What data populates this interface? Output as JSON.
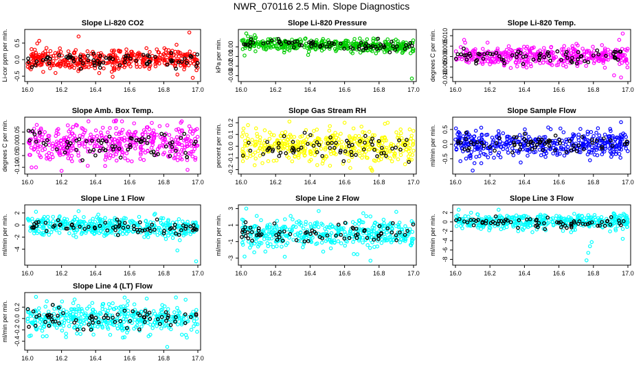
{
  "figure_title": "NWR_070116  2.5 Min. Slope Diagnostics",
  "colors": {
    "red": "#ff0000",
    "green": "#00cc00",
    "magenta": "#ff00ff",
    "yellow": "#ffff00",
    "blue": "#0000ff",
    "cyan": "#00ffff",
    "black": "#000000"
  },
  "chart_data": [
    {
      "type": "scatter",
      "title": "Slope Li-820 CO2",
      "ylabel": "Li-cor ppm per min.",
      "color": "red",
      "xlim": [
        16.0,
        17.0
      ],
      "ylim": [
        -0.6,
        0.85
      ],
      "xticks": [
        "16.0",
        "16.2",
        "16.4",
        "16.6",
        "16.8",
        "17.0"
      ],
      "yticks": [
        {
          "v": -0.5,
          "label": "-0.5"
        },
        {
          "v": 0,
          "label": "0.0"
        },
        {
          "v": 0.5,
          "label": "0.5"
        }
      ],
      "n_points": 420,
      "spread": 0.16,
      "seed": 11,
      "outliers": [
        [
          16.95,
          0.82
        ],
        [
          16.97,
          -0.55
        ],
        [
          16.3,
          0.7
        ],
        [
          16.88,
          -0.45
        ],
        [
          16.5,
          -0.52
        ]
      ]
    },
    {
      "type": "scatter",
      "title": "Slope Li-820 Pressure",
      "ylabel": "kPa per min.",
      "color": "green",
      "xlim": [
        16.0,
        17.0
      ],
      "ylim": [
        -0.034,
        0.016
      ],
      "xticks": [
        "16.0",
        "16.2",
        "16.4",
        "16.6",
        "16.8",
        "17.0"
      ],
      "yticks": [
        {
          "v": -0.03,
          "label": "-0.03"
        },
        {
          "v": -0.02,
          "label": "-0.02"
        },
        {
          "v": -0.01,
          "label": "-0.01"
        },
        {
          "v": 0,
          "label": "0.00"
        }
      ],
      "n_points": 420,
      "spread": 0.003,
      "seed": 23,
      "trend": [
        0.004,
        0.0
      ],
      "outliers": [
        [
          16.03,
          0.014
        ],
        [
          16.02,
          -0.009
        ],
        [
          16.99,
          -0.033
        ],
        [
          16.04,
          0.011
        ],
        [
          16.08,
          0.009
        ]
      ]
    },
    {
      "type": "scatter",
      "title": "Slope Li-820 Temp.",
      "ylabel": "degrees C per min.",
      "color": "magenta",
      "xlim": [
        16.0,
        17.0
      ],
      "ylim": [
        -0.011,
        0.012
      ],
      "xticks": [
        "16.0",
        "16.2",
        "16.4",
        "16.6",
        "16.8",
        "17.0"
      ],
      "yticks": [
        {
          "v": -0.01,
          "label": "-0.010"
        },
        {
          "v": -0.005,
          "label": "-0.005"
        },
        {
          "v": 0,
          "label": "0.000"
        },
        {
          "v": 0.005,
          "label": "0.005"
        },
        {
          "v": 0.01,
          "label": "0.010"
        }
      ],
      "n_points": 420,
      "spread": 0.0022,
      "seed": 37,
      "outliers": [
        [
          16.97,
          0.011
        ],
        [
          16.96,
          -0.01
        ],
        [
          16.92,
          -0.009
        ],
        [
          16.05,
          0.008
        ],
        [
          16.95,
          0.008
        ]
      ]
    },
    {
      "type": "scatter",
      "title": "Slope Amb. Box Temp.",
      "ylabel": "degrees C per min.",
      "color": "magenta",
      "xlim": [
        16.0,
        17.0
      ],
      "ylim": [
        -0.12,
        0.105
      ],
      "xticks": [
        "16.0",
        "16.2",
        "16.4",
        "16.6",
        "16.8",
        "17.0"
      ],
      "yticks": [
        {
          "v": -0.1,
          "label": "-0.10"
        },
        {
          "v": -0.05,
          "label": "-0.05"
        },
        {
          "v": 0,
          "label": "0.00"
        },
        {
          "v": 0.05,
          "label": "0.05"
        }
      ],
      "n_points": 420,
      "spread": 0.04,
      "seed": 41,
      "outliers": [
        [
          16.52,
          0.1
        ],
        [
          16.2,
          -0.115
        ],
        [
          16.05,
          -0.1
        ],
        [
          16.9,
          0.09
        ]
      ]
    },
    {
      "type": "scatter",
      "title": "Slope Gas Stream RH",
      "ylabel": "percent per min.",
      "color": "yellow",
      "xlim": [
        16.0,
        17.0
      ],
      "ylim": [
        -0.22,
        0.23
      ],
      "xticks": [
        "16.0",
        "16.2",
        "16.4",
        "16.6",
        "16.8",
        "17.0"
      ],
      "yticks": [
        {
          "v": -0.2,
          "label": "-0.2"
        },
        {
          "v": -0.1,
          "label": "-0.1"
        },
        {
          "v": 0,
          "label": "0.0"
        },
        {
          "v": 0.1,
          "label": "0.1"
        },
        {
          "v": 0.2,
          "label": "0.2"
        }
      ],
      "n_points": 420,
      "spread": 0.07,
      "seed": 53,
      "outliers": [
        [
          16.28,
          0.21
        ],
        [
          16.76,
          -0.21
        ],
        [
          16.85,
          0.2
        ],
        [
          16.04,
          0.18
        ],
        [
          16.6,
          0.2
        ]
      ]
    },
    {
      "type": "scatter",
      "title": "Slope Sample Flow",
      "ylabel": "ml/min per min.",
      "color": "blue",
      "xlim": [
        16.0,
        17.0
      ],
      "ylim": [
        -0.95,
        0.85
      ],
      "xticks": [
        "16.0",
        "16.2",
        "16.4",
        "16.6",
        "16.8",
        "17.0"
      ],
      "yticks": [
        {
          "v": -0.5,
          "label": "-0.5"
        },
        {
          "v": 0,
          "label": "0.0"
        },
        {
          "v": 0.5,
          "label": "0.5"
        }
      ],
      "n_points": 420,
      "spread": 0.2,
      "seed": 67,
      "outliers": [
        [
          16.96,
          0.75
        ],
        [
          16.1,
          -0.9
        ],
        [
          16.78,
          -0.55
        ],
        [
          16.15,
          -0.65
        ],
        [
          16.9,
          0.45
        ]
      ]
    },
    {
      "type": "scatter",
      "title": "Slope Line 1 Flow",
      "ylabel": "ml/min per min.",
      "color": "cyan",
      "xlim": [
        16.0,
        17.0
      ],
      "ylim": [
        -6.3,
        3.0
      ],
      "xticks": [
        "16.0",
        "16.2",
        "16.4",
        "16.6",
        "16.8",
        "17.0"
      ],
      "yticks": [
        {
          "v": -4,
          "label": "-4"
        },
        {
          "v": -2,
          "label": "-2"
        },
        {
          "v": 0,
          "label": "0"
        },
        {
          "v": 2,
          "label": "2"
        }
      ],
      "n_points": 420,
      "spread": 0.75,
      "seed": 79,
      "trend": [
        0.0,
        -0.6
      ],
      "outliers": [
        [
          16.99,
          -6.0
        ],
        [
          16.05,
          2.2
        ],
        [
          16.88,
          -4.2
        ],
        [
          16.3,
          2.3
        ]
      ]
    },
    {
      "type": "scatter",
      "title": "Slope Line 2 Flow",
      "ylabel": "ml/min per min.",
      "color": "cyan",
      "xlim": [
        16.0,
        17.0
      ],
      "ylim": [
        -3.6,
        3.2
      ],
      "xticks": [
        "16.0",
        "16.2",
        "16.4",
        "16.6",
        "16.8",
        "17.0"
      ],
      "yticks": [
        {
          "v": -3,
          "label": "-3"
        },
        {
          "v": -1,
          "label": "-1"
        },
        {
          "v": 1,
          "label": "1"
        },
        {
          "v": 3,
          "label": "3"
        }
      ],
      "n_points": 420,
      "spread": 0.85,
      "seed": 83,
      "outliers": [
        [
          16.03,
          3.0
        ],
        [
          16.75,
          -3.3
        ],
        [
          16.02,
          -2.8
        ],
        [
          16.9,
          2.6
        ],
        [
          16.45,
          2.7
        ]
      ]
    },
    {
      "type": "scatter",
      "title": "Slope Line 3 Flow",
      "ylabel": "ml/min per min.",
      "color": "cyan",
      "xlim": [
        16.0,
        17.0
      ],
      "ylim": [
        -8.8,
        3.2
      ],
      "xticks": [
        "16.0",
        "16.2",
        "16.4",
        "16.6",
        "16.8",
        "17.0"
      ],
      "yticks": [
        {
          "v": -8,
          "label": "-8"
        },
        {
          "v": -6,
          "label": "-6"
        },
        {
          "v": -4,
          "label": "-4"
        },
        {
          "v": -2,
          "label": "-2"
        },
        {
          "v": 0,
          "label": "0"
        },
        {
          "v": 2,
          "label": "2"
        }
      ],
      "n_points": 420,
      "spread": 0.85,
      "seed": 97,
      "outliers": [
        [
          16.76,
          -8.2
        ],
        [
          16.77,
          -6.6
        ],
        [
          16.78,
          -5.2
        ],
        [
          16.79,
          -4.3
        ],
        [
          16.97,
          -3.6
        ],
        [
          16.25,
          2.6
        ]
      ]
    },
    {
      "type": "scatter",
      "title": "Slope Line 4 (LT) Flow",
      "ylabel": "ml/min per min.",
      "color": "cyan",
      "xlim": [
        16.0,
        17.0
      ],
      "ylim": [
        -0.52,
        0.42
      ],
      "xticks": [
        "16.0",
        "16.2",
        "16.4",
        "16.6",
        "16.8",
        "17.0"
      ],
      "yticks": [
        {
          "v": -0.4,
          "label": "-0.4"
        },
        {
          "v": -0.2,
          "label": "-0.2"
        },
        {
          "v": 0,
          "label": "0.0"
        },
        {
          "v": 0.2,
          "label": "0.2"
        }
      ],
      "n_points": 420,
      "spread": 0.13,
      "seed": 101,
      "outliers": [
        [
          16.05,
          0.38
        ],
        [
          16.82,
          -0.5
        ],
        [
          16.7,
          0.35
        ],
        [
          16.02,
          -0.3
        ]
      ]
    }
  ]
}
